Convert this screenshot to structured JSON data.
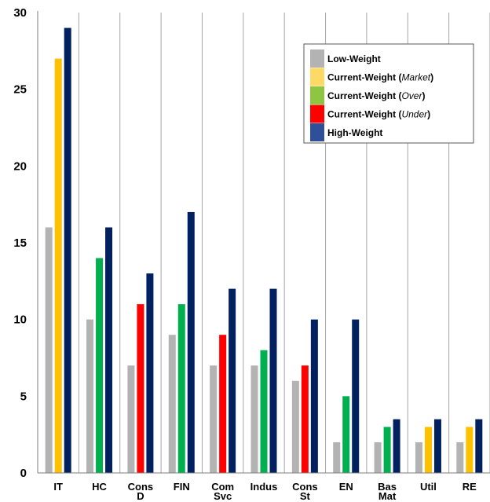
{
  "chart_data": {
    "type": "bar",
    "categories": [
      [
        "IT"
      ],
      [
        "HC"
      ],
      [
        "Cons",
        "D"
      ],
      [
        "FIN"
      ],
      [
        "Com",
        "Svc"
      ],
      [
        "Indus"
      ],
      [
        "Cons",
        "St"
      ],
      [
        "EN"
      ],
      [
        "Bas",
        "Mat"
      ],
      [
        "Util"
      ],
      [
        "RE"
      ]
    ],
    "ylim": [
      0,
      30
    ],
    "yticks": [
      0,
      5,
      10,
      15,
      20,
      25,
      30
    ],
    "grid": {
      "vertical": true,
      "horizontal": false
    },
    "legend_position": "top-right",
    "legend": [
      {
        "text": "Low-Weight",
        "color": "#b3b3b3"
      },
      {
        "text": "Current-Weight (",
        "italic": "Market",
        "suffix": ")",
        "color": "#ffd966"
      },
      {
        "text": "Current-Weight (",
        "italic": "Over",
        "suffix": ")",
        "color": "#8fc641"
      },
      {
        "text": "Current-Weight (",
        "italic": "Under",
        "suffix": ")",
        "color": "#ff0000"
      },
      {
        "text": "High-Weight",
        "color": "#2f4f9a"
      }
    ],
    "bars": [
      [
        {
          "v": 16,
          "k": "low"
        },
        {
          "v": 27,
          "k": "market"
        },
        {
          "v": 29,
          "k": "high"
        }
      ],
      [
        {
          "v": 10,
          "k": "low"
        },
        {
          "v": 14,
          "k": "over"
        },
        {
          "v": 16,
          "k": "high"
        }
      ],
      [
        {
          "v": 7,
          "k": "low"
        },
        {
          "v": 11,
          "k": "under"
        },
        {
          "v": 13,
          "k": "high"
        }
      ],
      [
        {
          "v": 9,
          "k": "low"
        },
        {
          "v": 11,
          "k": "over"
        },
        {
          "v": 17,
          "k": "high"
        }
      ],
      [
        {
          "v": 7,
          "k": "low"
        },
        {
          "v": 9,
          "k": "under"
        },
        {
          "v": 12,
          "k": "high"
        }
      ],
      [
        {
          "v": 7,
          "k": "low"
        },
        {
          "v": 8,
          "k": "over"
        },
        {
          "v": 12,
          "k": "high"
        }
      ],
      [
        {
          "v": 6,
          "k": "low"
        },
        {
          "v": 7,
          "k": "under"
        },
        {
          "v": 10,
          "k": "high"
        }
      ],
      [
        {
          "v": 2,
          "k": "low"
        },
        {
          "v": 5,
          "k": "over"
        },
        {
          "v": 10,
          "k": "high"
        }
      ],
      [
        {
          "v": 2,
          "k": "low"
        },
        {
          "v": 3,
          "k": "over"
        },
        {
          "v": 3.5,
          "k": "high"
        }
      ],
      [
        {
          "v": 2,
          "k": "low"
        },
        {
          "v": 3,
          "k": "market"
        },
        {
          "v": 3.5,
          "k": "high"
        }
      ],
      [
        {
          "v": 2,
          "k": "low"
        },
        {
          "v": 3,
          "k": "market"
        },
        {
          "v": 3.5,
          "k": "high"
        }
      ]
    ],
    "bar_colors": {
      "low": "#b3b3b3",
      "market": "#ffc000",
      "over": "#00b050",
      "under": "#ff0000",
      "high": "#002060"
    }
  }
}
